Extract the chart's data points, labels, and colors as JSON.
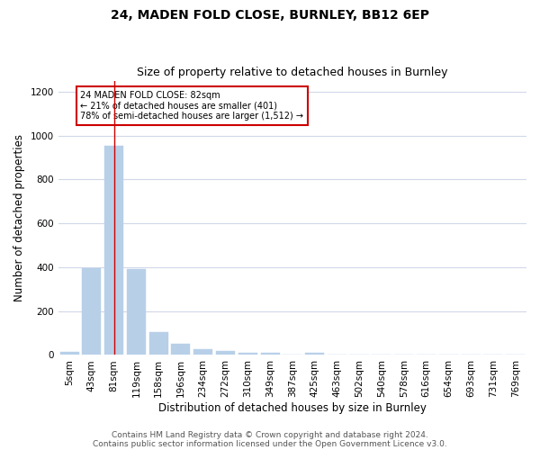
{
  "title1": "24, MADEN FOLD CLOSE, BURNLEY, BB12 6EP",
  "title2": "Size of property relative to detached houses in Burnley",
  "xlabel": "Distribution of detached houses by size in Burnley",
  "ylabel": "Number of detached properties",
  "categories": [
    "5sqm",
    "43sqm",
    "81sqm",
    "119sqm",
    "158sqm",
    "196sqm",
    "234sqm",
    "272sqm",
    "310sqm",
    "349sqm",
    "387sqm",
    "425sqm",
    "463sqm",
    "502sqm",
    "540sqm",
    "578sqm",
    "616sqm",
    "654sqm",
    "693sqm",
    "731sqm",
    "769sqm"
  ],
  "values": [
    15,
    395,
    955,
    390,
    105,
    50,
    25,
    20,
    12,
    12,
    0,
    12,
    0,
    0,
    0,
    0,
    0,
    0,
    0,
    0,
    0
  ],
  "bar_color": "#b8cfe8",
  "bar_edge_color": "#b8cfe8",
  "vline_x": 2,
  "vline_color": "#cc0000",
  "annotation_text": "24 MADEN FOLD CLOSE: 82sqm\n← 21% of detached houses are smaller (401)\n78% of semi-detached houses are larger (1,512) →",
  "annotation_box_color": "#ffffff",
  "annotation_box_edge": "#cc0000",
  "ylim": [
    0,
    1250
  ],
  "yticks": [
    0,
    200,
    400,
    600,
    800,
    1000,
    1200
  ],
  "footer1": "Contains HM Land Registry data © Crown copyright and database right 2024.",
  "footer2": "Contains public sector information licensed under the Open Government Licence v3.0.",
  "bg_color": "#ffffff",
  "plot_bg_color": "#ffffff",
  "grid_color": "#d0d8e8",
  "title1_fontsize": 10,
  "title2_fontsize": 9,
  "xlabel_fontsize": 8.5,
  "ylabel_fontsize": 8.5,
  "tick_fontsize": 7.5,
  "footer_fontsize": 6.5
}
